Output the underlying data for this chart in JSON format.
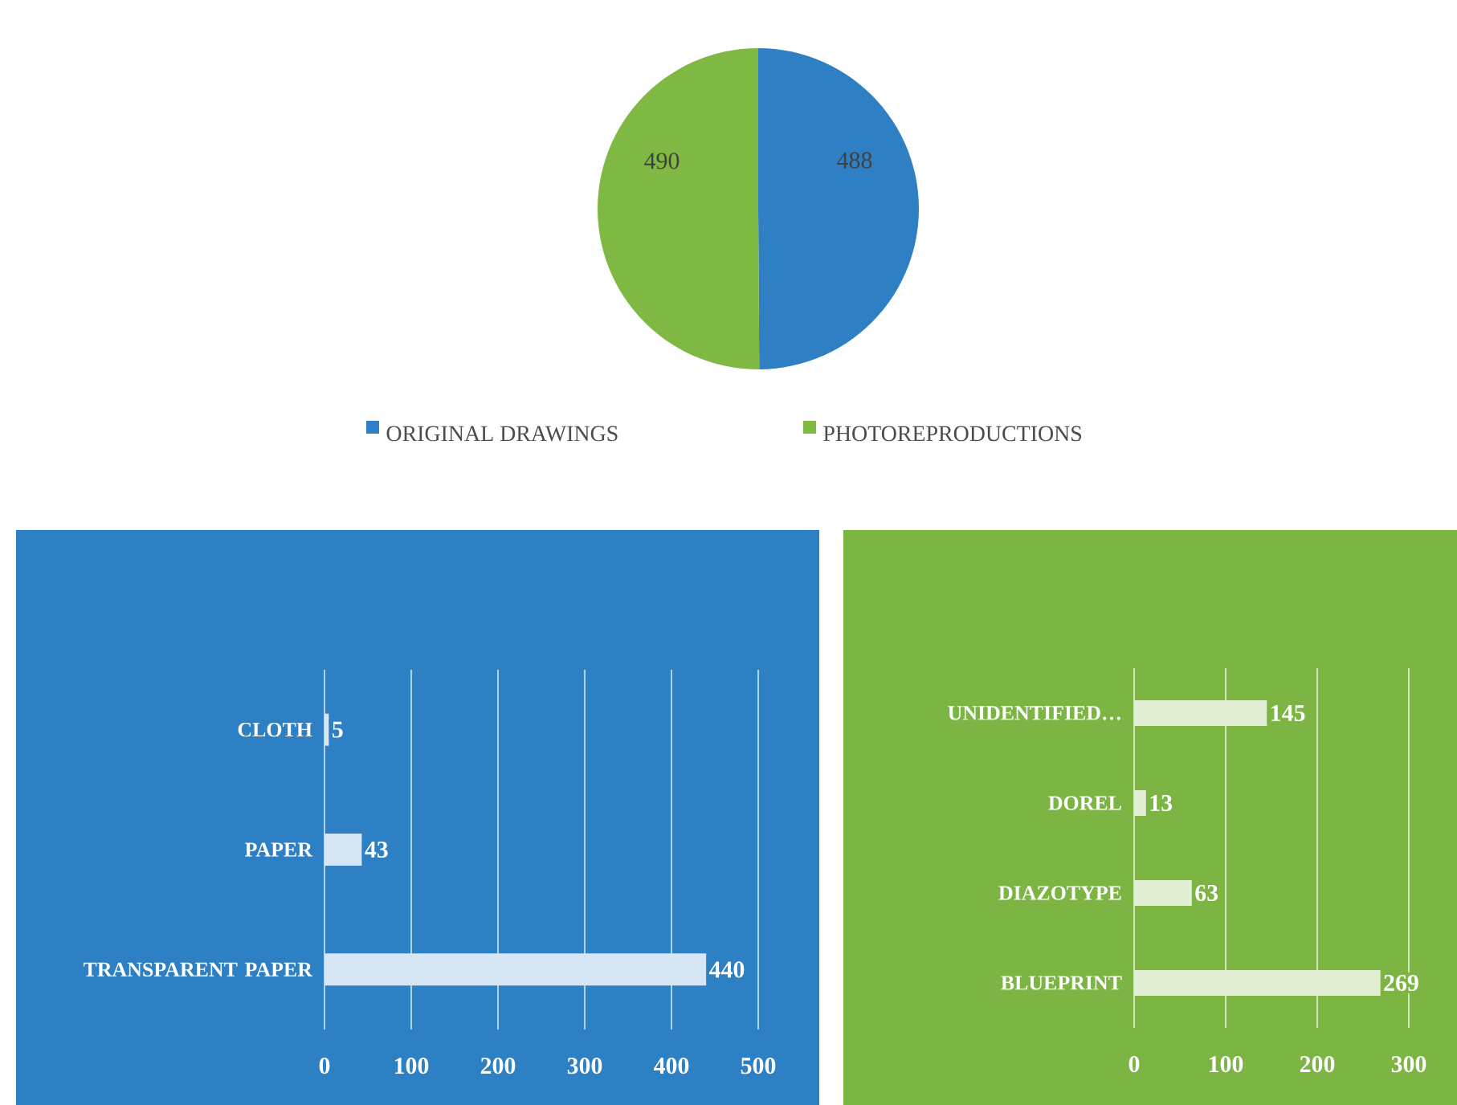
{
  "chart_data": [
    {
      "type": "pie",
      "categories": [
        "ORIGINAL DRAWINGS",
        "PHOTOREPRODUCTIONS"
      ],
      "values": [
        488,
        490
      ],
      "colors": [
        "#2e7fc4",
        "#7fb842"
      ],
      "data_labels": true,
      "legend": "bottom"
    },
    {
      "type": "bar",
      "orientation": "horizontal",
      "categories": [
        "CLOTH",
        "PAPER",
        "TRANSPARENT PAPER"
      ],
      "values": [
        5,
        43,
        440
      ],
      "color": "#d6e6f4",
      "xlim": [
        0,
        500
      ],
      "xticks": [
        0,
        100,
        200,
        300,
        400,
        500
      ],
      "grid": "x",
      "data_labels": true
    },
    {
      "type": "bar",
      "orientation": "horizontal",
      "categories": [
        "UNIDENTIFIED…",
        "DOREL",
        "DIAZOTYPE",
        "BLUEPRINT"
      ],
      "values": [
        145,
        13,
        63,
        269
      ],
      "color": "#e2efd4",
      "xlim": [
        0,
        300
      ],
      "xticks": [
        0,
        100,
        200,
        300
      ],
      "grid": "x",
      "data_labels": true
    }
  ]
}
